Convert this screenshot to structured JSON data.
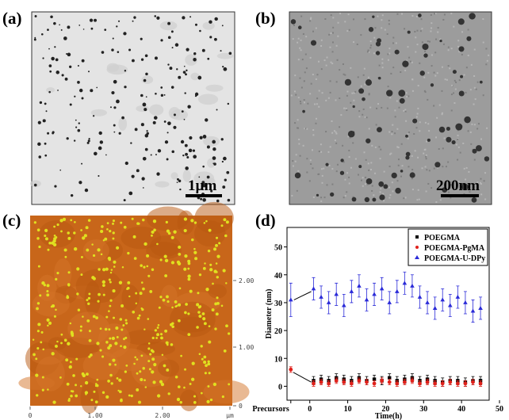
{
  "figure": {
    "panel_a": {
      "label": "(a)",
      "scale_bar": "1µm"
    },
    "panel_b": {
      "label": "(b)",
      "scale_bar": "200nm"
    },
    "panel_c": {
      "label": "(c)",
      "x_tick_labels": [
        "0",
        "1.00",
        "2.00",
        "µm"
      ],
      "y_tick_labels": [
        "2.00",
        "1.00",
        "0"
      ]
    }
  },
  "chart_data": {
    "type": "scatter",
    "label": "(d)",
    "xlabel": "Time(h)",
    "ylabel": "Diameter (nm)",
    "x": [
      -5,
      1,
      3,
      5,
      7,
      9,
      11,
      13,
      15,
      17,
      19,
      21,
      23,
      25,
      27,
      29,
      31,
      33,
      35,
      37,
      39,
      41,
      43,
      45
    ],
    "series": [
      {
        "name": "POEGMA",
        "color": "#000000",
        "marker": "square",
        "values": [
          null,
          2,
          2.5,
          2,
          3,
          2.5,
          2,
          3,
          2,
          2.5,
          2,
          3,
          2,
          2.5,
          3,
          2,
          2.5,
          2,
          1.5,
          2,
          2,
          1.5,
          2,
          2
        ],
        "errors": [
          null,
          1.5,
          1.5,
          1.5,
          1.5,
          1.5,
          1.5,
          1.5,
          1.5,
          1.5,
          1.5,
          1.5,
          1.5,
          1.5,
          1.5,
          1.5,
          1.5,
          1.5,
          1.5,
          1.5,
          1.5,
          1.5,
          1.5,
          1.5
        ]
      },
      {
        "name": "POEGMA-PgMA",
        "color": "#e0211b",
        "marker": "circle",
        "values": [
          6,
          1,
          1.5,
          1,
          2,
          1.5,
          1,
          2,
          1.5,
          1,
          2,
          1.5,
          1,
          1.5,
          2,
          1,
          1.5,
          1,
          1,
          1.5,
          1,
          1,
          1.5,
          1
        ],
        "errors": [
          1,
          1,
          1,
          1,
          1,
          1,
          1,
          1,
          1,
          1,
          1,
          1,
          1,
          1,
          1,
          1,
          1,
          1,
          1,
          1,
          1,
          1,
          1,
          1
        ]
      },
      {
        "name": "POEGMA-U-DPy",
        "color": "#2a2ad8",
        "marker": "triangle",
        "values": [
          31,
          35,
          32,
          30,
          33,
          29,
          34,
          36,
          31,
          33,
          35,
          30,
          34,
          37,
          36,
          32,
          30,
          28,
          31,
          29,
          32,
          30,
          27,
          28
        ],
        "errors": [
          6,
          4,
          4,
          4,
          4,
          4,
          4,
          4,
          4,
          4,
          4,
          4,
          4,
          4,
          4,
          4,
          4,
          4,
          4,
          4,
          4,
          4,
          4,
          4
        ]
      }
    ],
    "xlim": [
      -6,
      50
    ],
    "ylim": [
      -5,
      57
    ],
    "xticks": [
      {
        "value": -5,
        "label": "Precursors"
      },
      0,
      10,
      20,
      30,
      40,
      50
    ],
    "yticks": [
      0,
      10,
      20,
      30,
      40,
      50
    ],
    "legend": "upper right"
  }
}
